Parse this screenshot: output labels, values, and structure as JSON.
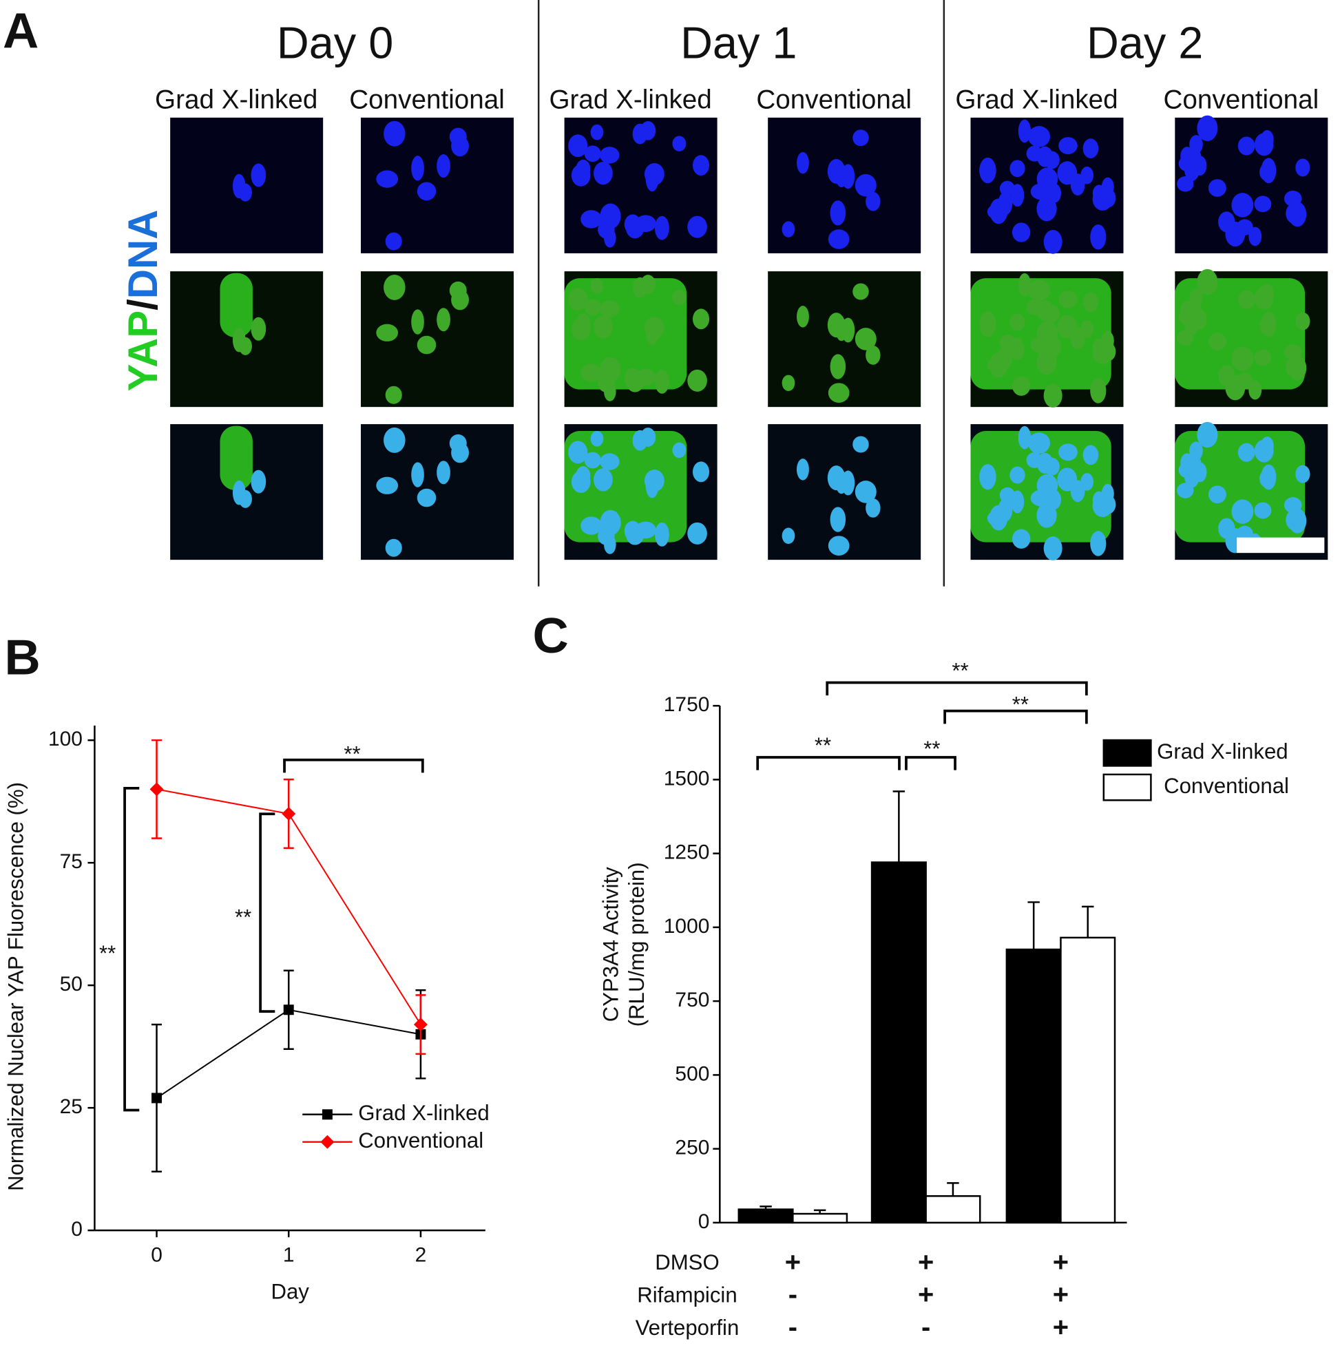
{
  "panel_a": {
    "label": "A",
    "days": [
      "Day 0",
      "Day 1",
      "Day 2"
    ],
    "columns": [
      "Grad X-linked",
      "Conventional",
      "Grad X-linked",
      "Conventional",
      "Grad X-linked",
      "Conventional"
    ],
    "stain": {
      "yap": "YAP",
      "sep": "/",
      "dna": "DNA"
    }
  },
  "chart_data": [
    {
      "panel": "B",
      "type": "line",
      "x": [
        0,
        1,
        2
      ],
      "xlim": [
        -0.47,
        2.49
      ],
      "xticks": [
        0,
        1,
        2
      ],
      "ylim": [
        0,
        103
      ],
      "yticks": [
        0,
        25,
        50,
        75,
        100
      ],
      "xlabel": "Day",
      "ylabel": "Normalized Nuclear YAP Fluorescence (%)",
      "series": [
        {
          "name": "Grad X-linked",
          "color": "#000000",
          "marker": "square",
          "values": [
            27,
            45,
            40
          ],
          "errors": [
            15,
            8,
            9
          ]
        },
        {
          "name": "Conventional",
          "color": "#ff0000",
          "marker": "diamond",
          "values": [
            90,
            85,
            42
          ],
          "errors": [
            10,
            7,
            6
          ]
        }
      ],
      "annotations": [
        "**",
        "**",
        "**"
      ]
    },
    {
      "panel": "C",
      "type": "bar",
      "categories": [
        null,
        null,
        null
      ],
      "ylim": [
        0,
        1750
      ],
      "yticks": [
        0,
        250,
        500,
        750,
        1000,
        1250,
        1500,
        1750
      ],
      "ylabel": [
        "CYP3A4 Activity",
        "(RLU/mg protein)"
      ],
      "series": [
        {
          "name": "Grad X-linked",
          "color": "#000000",
          "values": [
            45,
            1220,
            925
          ],
          "errors": [
            10,
            240,
            160
          ]
        },
        {
          "name": "Conventional",
          "color": "#ffffff",
          "values": [
            30,
            90,
            965
          ],
          "errors": [
            12,
            44,
            105
          ]
        }
      ],
      "treatments": [
        {
          "name": "DMSO",
          "marks": [
            "+",
            "+",
            "+"
          ]
        },
        {
          "name": "Rifampicin",
          "marks": [
            "-",
            "+",
            "+"
          ]
        },
        {
          "name": "Verteporfin",
          "marks": [
            "-",
            "-",
            "+"
          ]
        }
      ],
      "annotations": [
        "**",
        "**",
        "**",
        "**"
      ]
    }
  ]
}
